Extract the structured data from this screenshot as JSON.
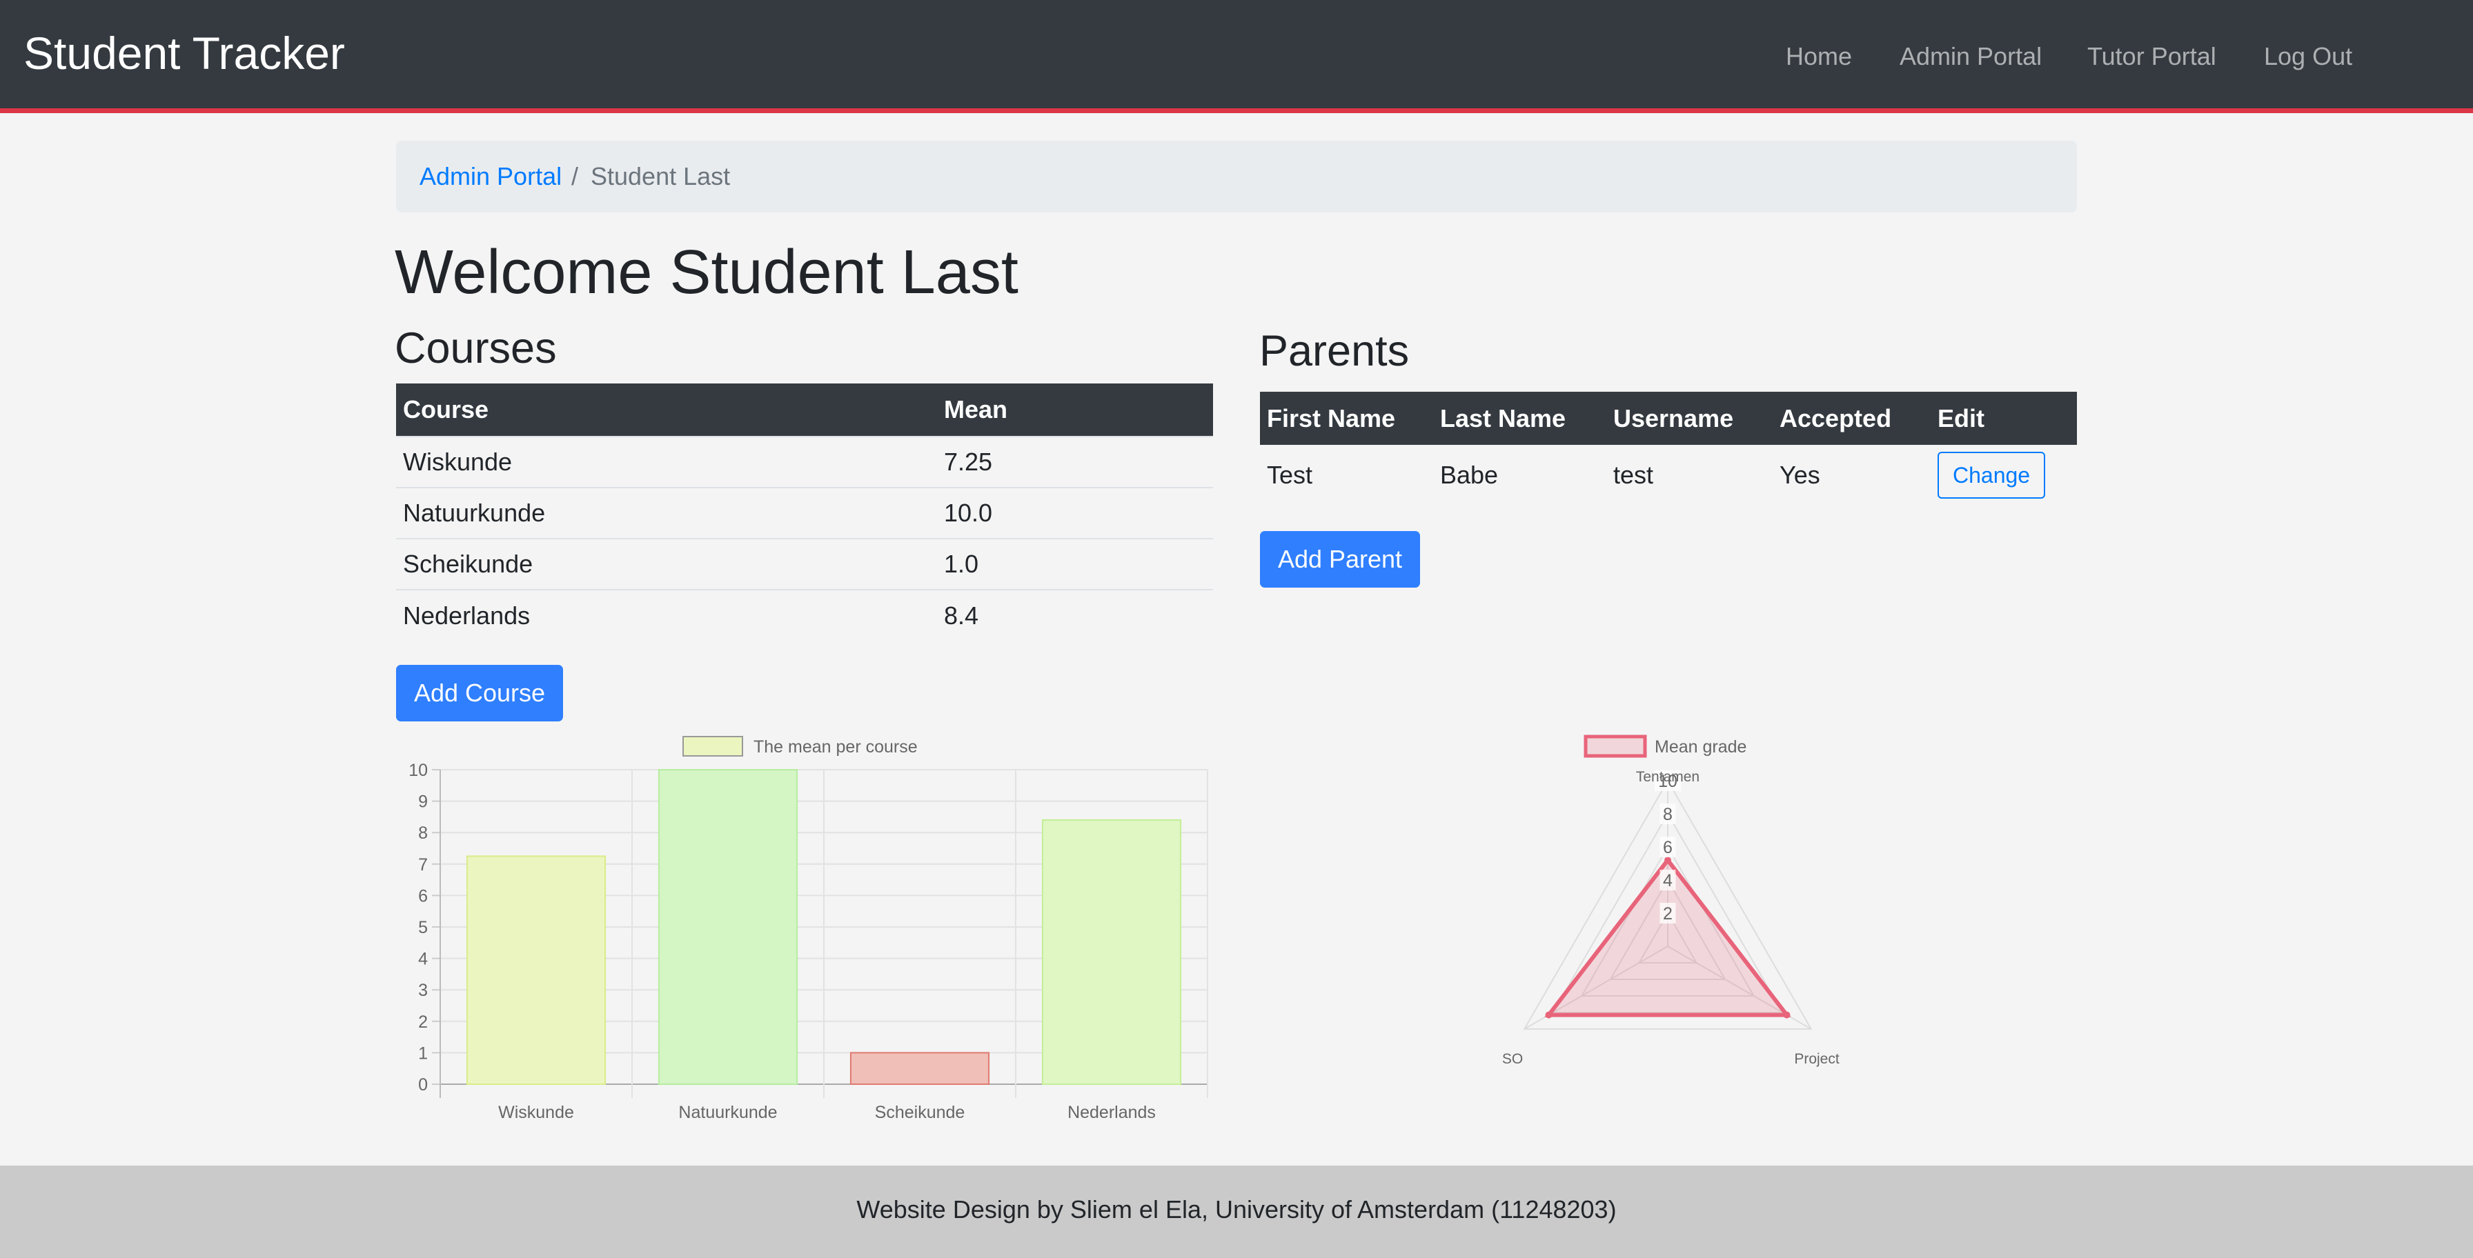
{
  "navbar": {
    "brand": "Student Tracker",
    "links": [
      "Home",
      "Admin Portal",
      "Tutor Portal",
      "Log Out"
    ]
  },
  "breadcrumb": {
    "parent": "Admin Portal",
    "separator": "/",
    "current": "Student Last"
  },
  "page": {
    "title": "Welcome Student Last"
  },
  "courses": {
    "heading": "Courses",
    "columns": [
      "Course",
      "Mean"
    ],
    "rows": [
      [
        "Wiskunde",
        "7.25"
      ],
      [
        "Natuurkunde",
        "10.0"
      ],
      [
        "Scheikunde",
        "1.0"
      ],
      [
        "Nederlands",
        "8.4"
      ]
    ],
    "add_button": "Add Course"
  },
  "parents": {
    "heading": "Parents",
    "columns": [
      "First Name",
      "Last Name",
      "Username",
      "Accepted",
      "Edit"
    ],
    "rows": [
      {
        "first": "Test",
        "last": "Babe",
        "username": "test",
        "accepted": "Yes",
        "edit": "Change"
      }
    ],
    "add_button": "Add Parent"
  },
  "chart_data": [
    {
      "type": "bar",
      "categories": [
        "Wiskunde",
        "Natuurkunde",
        "Scheikunde",
        "Nederlands"
      ],
      "series": [
        {
          "name": "The mean per course",
          "values": [
            7.25,
            10.0,
            1.0,
            8.4
          ]
        }
      ],
      "bar_colors": [
        "#ebf5c0",
        "#d4f5c4",
        "#f0bfb8",
        "#e0f7c4"
      ],
      "bar_borders": [
        "#d8ec88",
        "#b6eda0",
        "#e07a70",
        "#c3ee96"
      ],
      "legend_swatch": "#ebf5c0",
      "legend_position": "top",
      "yticks": [
        0,
        1,
        2,
        3,
        4,
        5,
        6,
        7,
        8,
        9,
        10
      ],
      "ylim": [
        0,
        10
      ],
      "grid": true
    },
    {
      "type": "radar",
      "axes": [
        "Tentamen",
        "Project",
        "SO"
      ],
      "series": [
        {
          "name": "Mean grade",
          "values": [
            5.2,
            8.3,
            8.3
          ]
        }
      ],
      "color": "#e8647a",
      "fill": "rgba(232,100,122,0.2)",
      "rticks": [
        "2",
        "4",
        "6",
        "8",
        "10"
      ],
      "rlim": [
        0,
        10
      ],
      "legend_position": "top"
    }
  ],
  "footer": {
    "text": "Website Design by Sliem el Ela, University of Amsterdam (11248203)"
  }
}
